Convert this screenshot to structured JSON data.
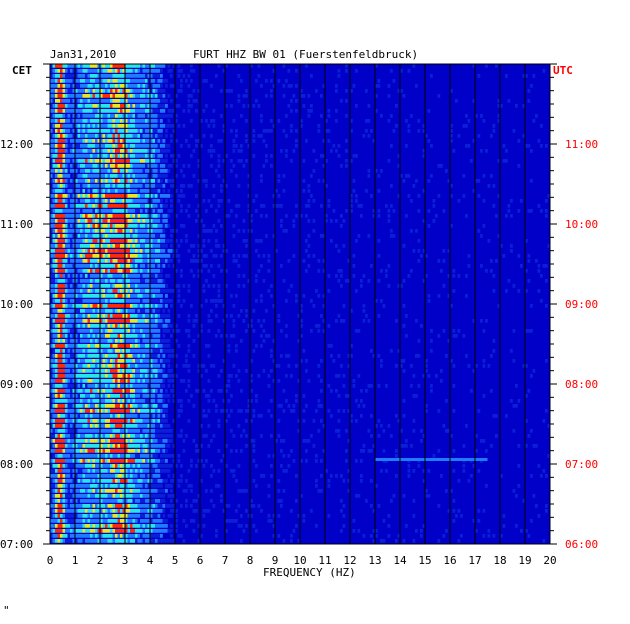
{
  "header": {
    "date": "Jan31,2010",
    "station": "FURT HHZ BW 01 (Fuersténfeldbruck)"
  },
  "chart_data": {
    "type": "heatmap",
    "title": "FURT HHZ BW 01 (Fuerstenfeldbruck)",
    "date": "Jan31,2010",
    "left_axis_label": "CET",
    "right_axis_label": "UTC",
    "xlabel": "FREQUENCY (HZ)",
    "xlim": [
      0,
      20
    ],
    "x_ticks": [
      "0",
      "1",
      "2",
      "3",
      "4",
      "5",
      "6",
      "7",
      "8",
      "9",
      "10",
      "11",
      "12",
      "13",
      "14",
      "15",
      "16",
      "17",
      "18",
      "19",
      "20"
    ],
    "left_ticks": [
      "12:00",
      "11:00",
      "10:00",
      "09:00",
      "08:00",
      "07:00"
    ],
    "right_ticks": [
      "11:00",
      "10:00",
      "09:00",
      "08:00",
      "07:00",
      "06:00"
    ],
    "time_range_cet": [
      "07:00",
      "13:00"
    ],
    "colors": {
      "background": "#0000c8",
      "low": "#0a1fd6",
      "mid": "#1f7bff",
      "high": "#28e6e6",
      "peak": "#e8e820",
      "max": "#ff2a00",
      "utc_color": "#ff0000"
    },
    "energy_bands_hz": [
      {
        "center": 0.4,
        "intensity": 0.95
      },
      {
        "center": 2.8,
        "intensity": 0.85
      },
      {
        "center": 1.6,
        "intensity": 0.55
      },
      {
        "center": 4.0,
        "intensity": 0.45
      }
    ],
    "notable_line": {
      "time_cet": "08:00",
      "freq_range": [
        13,
        17.5
      ]
    }
  },
  "footer": {
    "mark": "\""
  }
}
